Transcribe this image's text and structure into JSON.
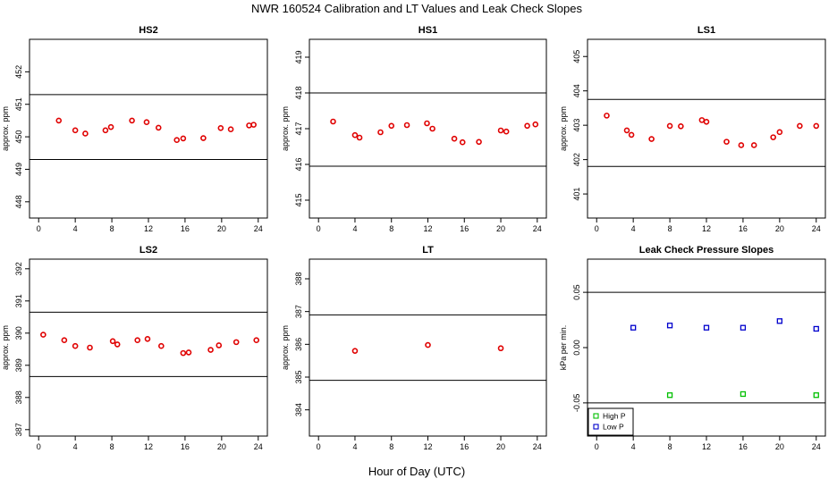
{
  "figure": {
    "title": "NWR  160524  Calibration and LT Values and Leak Check Slopes",
    "xlabel": "Hour of Day (UTC)"
  },
  "colors": {
    "calibration_points": "#e00000",
    "high_p": "#00c000",
    "low_p": "#0000cc",
    "lines": "#000000"
  },
  "chart_data": [
    {
      "type": "scatter",
      "title": "HS2",
      "ylabel": "approx. ppm",
      "xlim": [
        -1,
        25
      ],
      "ylim": [
        447.5,
        453.0
      ],
      "xticks": [
        "0",
        "4",
        "8",
        "12",
        "16",
        "20",
        "24"
      ],
      "yticks": [
        "448",
        "449",
        "450",
        "451",
        "452"
      ],
      "hlines": [
        451.3,
        449.3
      ],
      "grid": false,
      "series": [
        {
          "marker": "circle",
          "color": "#e00000",
          "x": [
            2.2,
            4.0,
            5.1,
            7.3,
            7.9,
            10.2,
            11.8,
            13.1,
            15.1,
            15.8,
            18.0,
            19.9,
            21.0,
            23.0,
            23.5
          ],
          "y": [
            450.5,
            450.2,
            450.1,
            450.2,
            450.3,
            450.5,
            450.45,
            450.28,
            449.9,
            449.95,
            449.96,
            450.27,
            450.23,
            450.35,
            450.37
          ]
        }
      ]
    },
    {
      "type": "scatter",
      "title": "HS1",
      "ylabel": "approx. ppm",
      "xlim": [
        -1,
        25
      ],
      "ylim": [
        414.5,
        419.5
      ],
      "xticks": [
        "0",
        "4",
        "8",
        "12",
        "16",
        "20",
        "24"
      ],
      "yticks": [
        "415",
        "416",
        "417",
        "418",
        "419"
      ],
      "hlines": [
        418.0,
        415.95
      ],
      "grid": false,
      "series": [
        {
          "marker": "circle",
          "color": "#e00000",
          "x": [
            1.6,
            4.0,
            4.5,
            6.8,
            8.0,
            9.7,
            11.9,
            12.5,
            14.9,
            15.8,
            17.6,
            20.0,
            20.6,
            22.9,
            23.8
          ],
          "y": [
            417.2,
            416.82,
            416.75,
            416.9,
            417.08,
            417.1,
            417.15,
            417.0,
            416.72,
            416.62,
            416.63,
            416.95,
            416.92,
            417.08,
            417.12
          ]
        }
      ]
    },
    {
      "type": "scatter",
      "title": "LS1",
      "ylabel": "approx. ppm",
      "xlim": [
        -1,
        25
      ],
      "ylim": [
        400.3,
        405.5
      ],
      "xticks": [
        "0",
        "4",
        "8",
        "12",
        "16",
        "20",
        "24"
      ],
      "yticks": [
        "401",
        "402",
        "403",
        "404",
        "405"
      ],
      "hlines": [
        403.75,
        401.8
      ],
      "grid": false,
      "series": [
        {
          "marker": "circle",
          "color": "#e00000",
          "x": [
            1.1,
            3.3,
            3.8,
            6.0,
            8.0,
            9.2,
            11.5,
            12.0,
            14.2,
            15.8,
            17.2,
            19.3,
            20.0,
            22.2,
            24.0
          ],
          "y": [
            403.28,
            402.85,
            402.72,
            402.6,
            402.98,
            402.97,
            403.15,
            403.1,
            402.52,
            402.42,
            402.42,
            402.65,
            402.8,
            402.98,
            402.98
          ]
        }
      ]
    },
    {
      "type": "scatter",
      "title": "LS2",
      "ylabel": "approx. ppm",
      "xlim": [
        -1,
        25
      ],
      "ylim": [
        386.8,
        392.3
      ],
      "xticks": [
        "0",
        "4",
        "8",
        "12",
        "16",
        "20",
        "24"
      ],
      "yticks": [
        "387",
        "388",
        "389",
        "390",
        "391",
        "392"
      ],
      "hlines": [
        390.65,
        388.65
      ],
      "grid": false,
      "series": [
        {
          "marker": "circle",
          "color": "#e00000",
          "x": [
            0.5,
            2.8,
            4.0,
            5.6,
            8.1,
            8.6,
            10.8,
            11.9,
            13.4,
            15.8,
            16.4,
            18.8,
            19.7,
            21.6,
            23.8
          ],
          "y": [
            389.95,
            389.78,
            389.6,
            389.55,
            389.75,
            389.65,
            389.78,
            389.82,
            389.6,
            389.38,
            389.4,
            389.48,
            389.62,
            389.72,
            389.78
          ]
        }
      ]
    },
    {
      "type": "scatter",
      "title": "LT",
      "ylabel": "approx. ppm",
      "xlim": [
        -1,
        25
      ],
      "ylim": [
        383.2,
        388.6
      ],
      "xticks": [
        "0",
        "4",
        "8",
        "12",
        "16",
        "20",
        "24"
      ],
      "yticks": [
        "384",
        "385",
        "386",
        "387",
        "388"
      ],
      "hlines": [
        386.9,
        384.9
      ],
      "grid": false,
      "series": [
        {
          "marker": "circle",
          "color": "#e00000",
          "x": [
            4.0,
            12.0,
            20.0
          ],
          "y": [
            385.8,
            385.98,
            385.88
          ]
        }
      ]
    },
    {
      "type": "scatter",
      "title": "Leak Check Pressure Slopes",
      "ylabel": "kPa per min.",
      "xlim": [
        -1,
        25
      ],
      "ylim": [
        -0.08,
        0.08
      ],
      "xticks": [
        "0",
        "4",
        "8",
        "12",
        "16",
        "20",
        "24"
      ],
      "yticks": [
        "-0.05",
        "0.00",
        "0.05"
      ],
      "hlines": [
        0.05,
        -0.05
      ],
      "grid": false,
      "legend": "bottom-left",
      "series": [
        {
          "name": "High P",
          "marker": "square",
          "color": "#00c000",
          "x": [
            8,
            16,
            24
          ],
          "y": [
            -0.043,
            -0.042,
            -0.043
          ]
        },
        {
          "name": "Low P",
          "marker": "square",
          "color": "#0000cc",
          "x": [
            4,
            8,
            12,
            16,
            20,
            24
          ],
          "y": [
            0.018,
            0.02,
            0.018,
            0.018,
            0.024,
            0.017
          ]
        }
      ]
    }
  ]
}
